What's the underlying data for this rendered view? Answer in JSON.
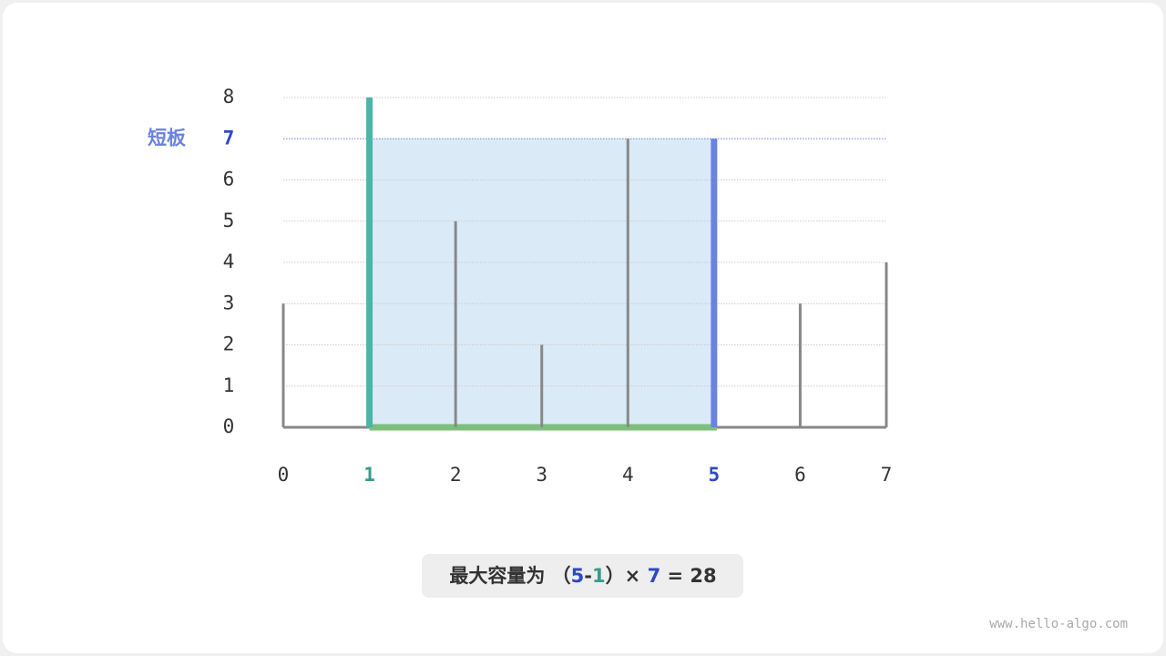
{
  "chart_data": {
    "type": "bar",
    "categories": [
      "0",
      "1",
      "2",
      "3",
      "4",
      "5",
      "6",
      "7"
    ],
    "values": [
      3,
      8,
      5,
      2,
      7,
      7,
      3,
      4
    ],
    "color": "#888888",
    "ylim": [
      0,
      8
    ],
    "yticks": [
      0,
      1,
      2,
      3,
      4,
      5,
      6,
      7,
      8
    ],
    "grid": true,
    "highlight": {
      "left": 1,
      "right": 5,
      "water_level": 7,
      "left_color": "#4cb5a8",
      "right_color": "#6c82e0",
      "water_color": "#dbeaf7",
      "base_color": "#7cbf7c",
      "label": "短板"
    },
    "caption": [
      {
        "text": "最大容量为 （"
      },
      {
        "text": "5",
        "color": "#2d48c8"
      },
      {
        "text": "-"
      },
      {
        "text": "1",
        "color": "#3a9a8a"
      },
      {
        "text": "）× "
      },
      {
        "text": "7",
        "color": "#2d48c8"
      },
      {
        "text": " = "
      },
      {
        "text": "28"
      }
    ],
    "watermark": "www.hello-algo.com"
  }
}
